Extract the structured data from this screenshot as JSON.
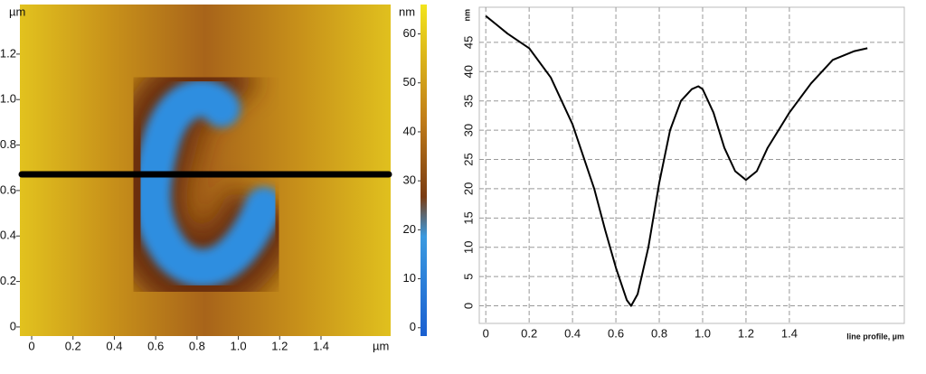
{
  "chart_data": [
    {
      "type": "heatmap",
      "xlabel": "µm",
      "ylabel": "µm",
      "xlim": [
        -0.057,
        1.737
      ],
      "ylim": [
        -0.04,
        1.418
      ],
      "xticks": [
        0,
        0.2,
        0.4,
        0.6,
        0.8,
        {
          "value": 1,
          "label": "1.0"
        },
        1.2,
        1.4
      ],
      "yticks": [
        0,
        0.2,
        0.4,
        0.6,
        0.8,
        {
          "value": 1,
          "label": "1.0"
        },
        1.2
      ],
      "profile_y": 0.671,
      "colorbar": {
        "label": "nm",
        "lim": [
          -1.7,
          66
        ],
        "ticks": [
          0,
          10,
          20,
          30,
          40,
          50,
          60
        ]
      }
    },
    {
      "type": "line",
      "xlabel": "line profile, µm",
      "ylabel": "nm",
      "color": "#000000",
      "grid": true,
      "xlim": [
        -0.03,
        1.93
      ],
      "ylim": [
        -3,
        51
      ],
      "xticks": [
        0,
        0.2,
        0.4,
        0.6,
        0.8,
        {
          "value": 1,
          "label": "1.0"
        },
        1.2,
        1.4
      ],
      "yticks": [
        0,
        5,
        10,
        15,
        20,
        25,
        30,
        35,
        40,
        45
      ],
      "x": [
        0,
        0.05,
        0.1,
        0.2,
        0.3,
        0.4,
        0.5,
        0.55,
        0.6,
        0.65,
        0.67,
        0.7,
        0.75,
        0.8,
        0.85,
        0.9,
        0.95,
        0.98,
        1.0,
        1.05,
        1.1,
        1.15,
        1.2,
        1.25,
        1.3,
        1.4,
        1.5,
        1.6,
        1.7,
        1.76
      ],
      "values": [
        49.5,
        48,
        46.5,
        44,
        39,
        31,
        20,
        13,
        6.5,
        1,
        0,
        2,
        10,
        21,
        30,
        35,
        37,
        37.5,
        37,
        33,
        27,
        23,
        21.5,
        23,
        27,
        33,
        38,
        42,
        43.5,
        44
      ]
    }
  ]
}
